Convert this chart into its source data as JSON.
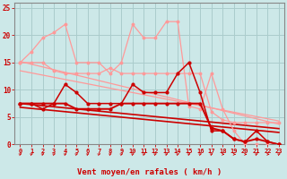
{
  "x": [
    0,
    1,
    2,
    3,
    4,
    5,
    6,
    7,
    8,
    9,
    10,
    11,
    12,
    13,
    14,
    15,
    16,
    17,
    18,
    19,
    20,
    21,
    22,
    23
  ],
  "line_gust": [
    15,
    17,
    19.5,
    20.5,
    22,
    15,
    15,
    15,
    13,
    15,
    22,
    19.5,
    19.5,
    22.5,
    22.5,
    7,
    6.5,
    13,
    6.5,
    2.5,
    0,
    0,
    0,
    0
  ],
  "line_avg_hi": [
    15,
    15,
    15,
    13.5,
    13,
    13,
    13,
    13,
    14,
    13,
    13,
    13,
    13,
    13,
    13,
    13,
    13,
    6,
    4.5,
    4,
    4,
    4,
    4,
    4
  ],
  "line_wind1": [
    7.5,
    7.5,
    6.5,
    7.5,
    11,
    9.5,
    7.5,
    7.5,
    7.5,
    7.5,
    11,
    9.5,
    9.5,
    9.5,
    13,
    15,
    9.5,
    2.5,
    2.5,
    1,
    0.5,
    2.5,
    0.5,
    0
  ],
  "line_wind2": [
    7.5,
    7.5,
    7.5,
    7.5,
    7.5,
    6.5,
    6.5,
    6.5,
    6.5,
    7.5,
    7.5,
    7.5,
    7.5,
    7.5,
    7.5,
    7.5,
    7.5,
    3,
    2.5,
    1,
    0.5,
    1,
    0.5,
    0
  ],
  "trend_pink_hi": [
    15.2,
    14.7,
    14.2,
    13.7,
    13.2,
    12.7,
    12.2,
    11.7,
    11.2,
    10.7,
    10.2,
    9.7,
    9.2,
    8.7,
    8.2,
    7.7,
    7.2,
    6.7,
    6.2,
    5.7,
    5.2,
    4.7,
    4.2,
    3.7
  ],
  "trend_pink_lo": [
    13.5,
    13.1,
    12.7,
    12.3,
    11.9,
    11.5,
    11.1,
    10.7,
    10.3,
    9.9,
    9.5,
    9.1,
    8.7,
    8.3,
    7.9,
    7.5,
    7.1,
    6.7,
    6.3,
    5.9,
    5.5,
    5.1,
    4.7,
    4.3
  ],
  "trend_red_hi": [
    7.5,
    7.3,
    7.1,
    6.9,
    6.7,
    6.5,
    6.3,
    6.1,
    5.9,
    5.7,
    5.5,
    5.3,
    5.1,
    4.9,
    4.7,
    4.5,
    4.3,
    4.1,
    3.9,
    3.7,
    3.5,
    3.3,
    3.1,
    2.9
  ],
  "trend_red_lo": [
    6.8,
    6.6,
    6.4,
    6.2,
    6.0,
    5.8,
    5.6,
    5.4,
    5.2,
    5.0,
    4.8,
    4.6,
    4.4,
    4.2,
    4.0,
    3.8,
    3.6,
    3.4,
    3.2,
    3.0,
    2.8,
    2.6,
    2.4,
    2.2
  ],
  "arrows_deg": [
    45,
    45,
    45,
    45,
    45,
    45,
    45,
    45,
    45,
    45,
    45,
    45,
    45,
    45,
    45,
    45,
    45,
    45,
    90,
    90,
    90,
    45,
    90,
    45
  ],
  "bg_color": "#cce8e8",
  "grid_color": "#aacccc",
  "pink": "#ff9999",
  "red": "#cc0000",
  "xlabel": "Vent moyen/en rafales ( km/h )",
  "ylim": [
    0,
    26
  ],
  "xlim": [
    -0.5,
    23.5
  ],
  "yticks": [
    0,
    5,
    10,
    15,
    20,
    25
  ],
  "xticks": [
    0,
    1,
    2,
    3,
    4,
    5,
    6,
    7,
    8,
    9,
    10,
    11,
    12,
    13,
    14,
    15,
    16,
    17,
    18,
    19,
    20,
    21,
    22,
    23
  ]
}
